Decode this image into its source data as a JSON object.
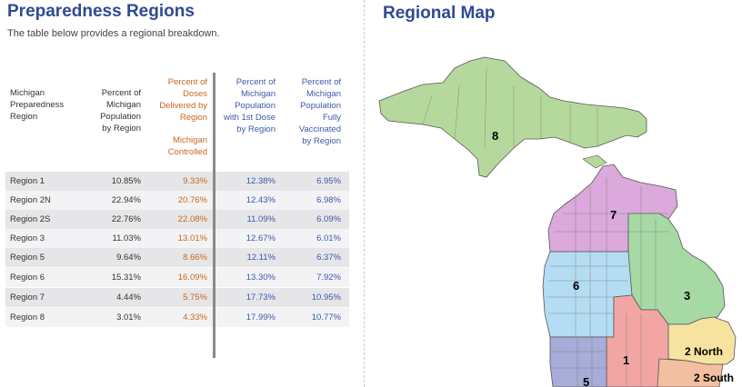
{
  "left": {
    "title": "Preparedness Regions",
    "subtitle": "The table below provides a regional breakdown."
  },
  "right": {
    "title": "Regional Map"
  },
  "table": {
    "headers": {
      "region": [
        "Michigan",
        "Preparedness",
        "Region"
      ],
      "pct_population": [
        "Percent of",
        "Michigan",
        "Population",
        "by Region"
      ],
      "pct_doses": [
        "Percent of",
        "Doses",
        "Delivered by",
        "Region"
      ],
      "pct_doses_note": [
        "Michigan",
        "Controlled"
      ],
      "first_dose": [
        "Percent of",
        "Michigan",
        "Population",
        "with 1st Dose",
        "by Region"
      ],
      "fully_vaccinated": [
        "Percent of",
        "Michigan",
        "Population",
        "Fully",
        "Vaccinated",
        "by Region"
      ]
    },
    "rows": [
      {
        "region": "Region 1",
        "pop": "10.85%",
        "doses": "9.33%",
        "first": "12.38%",
        "full": "6.95%"
      },
      {
        "region": "Region 2N",
        "pop": "22.94%",
        "doses": "20.76%",
        "first": "12.43%",
        "full": "6.98%"
      },
      {
        "region": "Region 2S",
        "pop": "22.76%",
        "doses": "22.08%",
        "first": "11.09%",
        "full": "6.09%"
      },
      {
        "region": "Region 3",
        "pop": "11.03%",
        "doses": "13.01%",
        "first": "12.67%",
        "full": "6.01%"
      },
      {
        "region": "Region 5",
        "pop": "9.64%",
        "doses": "8.66%",
        "first": "12.11%",
        "full": "6.37%"
      },
      {
        "region": "Region 6",
        "pop": "15.31%",
        "doses": "16.09%",
        "first": "13.30%",
        "full": "7.92%"
      },
      {
        "region": "Region 7",
        "pop": "4.44%",
        "doses": "5.75%",
        "first": "17.73%",
        "full": "10.95%"
      },
      {
        "region": "Region 8",
        "pop": "3.01%",
        "doses": "4.33%",
        "first": "17.99%",
        "full": "10.77%"
      }
    ]
  },
  "map": {
    "labels": {
      "r8": "8",
      "r7": "7",
      "r6": "6",
      "r3": "3",
      "r1": "1",
      "r5": "5",
      "r2n": "2 North",
      "r2s": "2 South"
    },
    "colors": {
      "region8": "#b5d99c",
      "region7": "#dba9db",
      "region6": "#b4dcf2",
      "region3": "#a7d9a5",
      "region1": "#f2a6a3",
      "region5": "#a8acd8",
      "region2n": "#f7e3a0",
      "region2s": "#f2bfa0",
      "water_outline": "#8a8a8a",
      "title": "#2f4a94",
      "orange_text": "#c8661f",
      "blue_text": "#3b5ba5"
    }
  }
}
